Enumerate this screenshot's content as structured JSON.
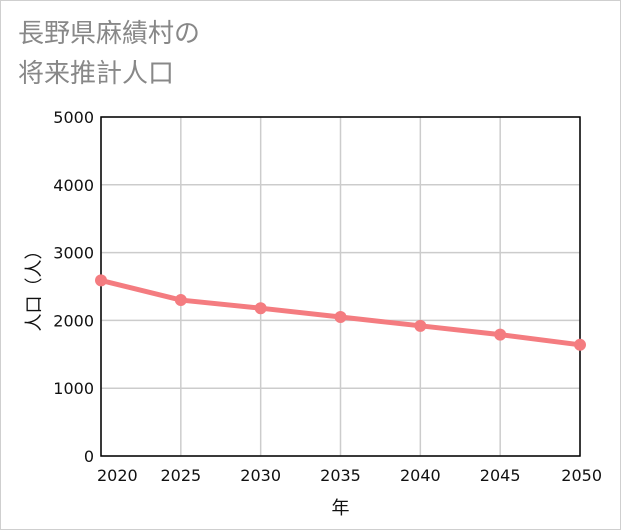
{
  "chart_data": {
    "type": "line",
    "title_lines": [
      "長野県麻績村の",
      "将来推計人口"
    ],
    "xlabel": "年",
    "ylabel": "人口（人）",
    "x": [
      2020,
      2025,
      2030,
      2035,
      2040,
      2045,
      2050
    ],
    "series": [
      {
        "name": "人口",
        "values": [
          2590,
          2300,
          2180,
          2050,
          1920,
          1790,
          1640
        ],
        "color": "#f47c80"
      }
    ],
    "xlim": [
      2020,
      2050
    ],
    "ylim": [
      0,
      5000
    ],
    "yticks": [
      0,
      1000,
      2000,
      3000,
      4000,
      5000
    ],
    "xticks": [
      2020,
      2025,
      2030,
      2035,
      2040,
      2045,
      2050
    ],
    "grid": true,
    "grid_color": "#cccccc"
  }
}
